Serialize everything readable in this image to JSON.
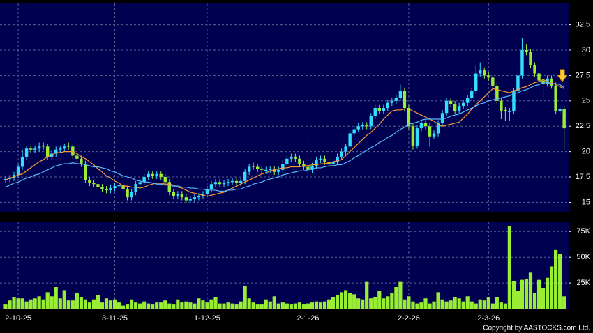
{
  "chart_data": [
    {
      "type": "candlestick",
      "categories": [
        null,
        null,
        null,
        "2-10-25",
        null,
        null,
        null,
        null,
        null,
        null,
        null,
        null,
        null,
        null,
        null,
        null,
        null,
        null,
        null,
        null,
        null,
        null,
        null,
        null,
        null,
        null,
        "3-11-25",
        null,
        null,
        null,
        null,
        null,
        null,
        null,
        null,
        null,
        null,
        null,
        null,
        null,
        null,
        null,
        null,
        null,
        null,
        null,
        null,
        null,
        "1-12-25",
        null,
        null,
        null,
        null,
        null,
        null,
        null,
        null,
        null,
        null,
        null,
        null,
        null,
        null,
        null,
        null,
        null,
        null,
        null,
        null,
        null,
        null,
        null,
        "2-1-26",
        null,
        null,
        null,
        null,
        null,
        null,
        null,
        null,
        null,
        null,
        null,
        null,
        null,
        null,
        null,
        null,
        null,
        null,
        null,
        null,
        null,
        null,
        null,
        "2-2-26",
        null,
        null,
        null,
        null,
        null,
        null,
        null,
        null,
        null,
        null,
        null,
        null,
        null,
        null,
        null,
        null,
        null,
        null,
        "2-3-26",
        null,
        null,
        null,
        null,
        null,
        null,
        null,
        null,
        null,
        null,
        null,
        null,
        null,
        null,
        null,
        null,
        null,
        null
      ],
      "open": [
        17.2,
        17.3,
        17.4,
        17.7,
        18.5,
        19.5,
        20.3,
        20.2,
        20.3,
        20.6,
        20.5,
        19.5,
        19.8,
        20.2,
        20.3,
        20.6,
        20.5,
        19.6,
        19.3,
        18.8,
        17.2,
        16.9,
        16.8,
        16.5,
        16.3,
        16.2,
        16.4,
        16.6,
        16.7,
        16.3,
        15.5,
        16.0,
        16.8,
        17.0,
        17.5,
        17.8,
        17.6,
        17.8,
        17.5,
        17.0,
        16.0,
        15.6,
        15.8,
        15.5,
        15.2,
        15.3,
        15.5,
        15.6,
        15.8,
        16.3,
        16.8,
        17.0,
        16.8,
        16.9,
        17.0,
        17.1,
        16.9,
        17.1,
        18.0,
        18.6,
        18.5,
        18.3,
        18.1,
        18.2,
        18.3,
        18.0,
        18.2,
        18.8,
        19.3,
        19.5,
        19.3,
        18.8,
        18.5,
        18.2,
        18.6,
        19.2,
        19.3,
        19.0,
        18.8,
        19.0,
        19.5,
        20.0,
        20.5,
        21.8,
        22.2,
        22.5,
        22.6,
        22.5,
        23.5,
        24.3,
        24.0,
        24.3,
        24.8,
        25.0,
        25.3,
        26.0,
        24.3,
        22.5,
        20.6,
        22.3,
        22.8,
        22.5,
        21.5,
        21.8,
        22.8,
        23.8,
        25.0,
        24.7,
        24.0,
        24.5,
        24.8,
        25.3,
        26.0,
        27.7,
        28.0,
        27.5,
        27.3,
        26.5,
        25.0,
        24.1,
        23.9,
        24.0,
        26.0,
        27.5,
        30.0,
        29.8,
        28.5,
        27.7,
        27.0,
        26.7,
        27.2,
        26.5,
        24.0,
        24.2
      ],
      "high": [
        17.6,
        17.7,
        18.0,
        18.8,
        20.2,
        20.6,
        20.6,
        20.6,
        20.9,
        20.9,
        20.8,
        20.1,
        20.5,
        20.6,
        20.8,
        20.9,
        20.8,
        19.9,
        19.6,
        19.1,
        17.5,
        17.2,
        17.1,
        16.8,
        16.6,
        16.7,
        16.9,
        17.0,
        17.0,
        16.6,
        16.3,
        17.1,
        17.3,
        17.8,
        18.1,
        18.1,
        18.1,
        18.1,
        17.8,
        17.3,
        16.3,
        16.1,
        16.1,
        15.8,
        15.6,
        15.8,
        15.9,
        16.1,
        16.6,
        17.1,
        17.3,
        17.3,
        17.2,
        17.3,
        17.4,
        17.4,
        17.4,
        18.3,
        18.8,
        18.9,
        18.8,
        18.6,
        18.5,
        18.6,
        18.6,
        18.5,
        19.1,
        19.6,
        19.8,
        19.8,
        19.6,
        19.1,
        18.8,
        18.9,
        19.5,
        19.6,
        19.6,
        19.3,
        19.3,
        19.8,
        20.3,
        20.8,
        22.1,
        22.5,
        22.8,
        22.9,
        22.9,
        23.8,
        24.6,
        24.6,
        24.6,
        25.1,
        25.3,
        25.6,
        26.6,
        26.3,
        24.6,
        22.8,
        22.6,
        23.1,
        23.1,
        22.8,
        22.1,
        23.1,
        24.1,
        25.3,
        25.3,
        25.0,
        24.8,
        25.1,
        25.6,
        26.3,
        28.5,
        28.8,
        28.3,
        27.8,
        27.6,
        26.8,
        25.3,
        24.4,
        24.3,
        26.3,
        28.3,
        31.2,
        30.6,
        30.1,
        28.8,
        28.0,
        27.3,
        27.5,
        27.5,
        26.8,
        24.5,
        24.5
      ],
      "low": [
        16.9,
        17.0,
        17.1,
        17.4,
        18.2,
        19.2,
        19.9,
        19.9,
        20.0,
        20.2,
        19.2,
        19.2,
        19.5,
        19.9,
        20.0,
        20.2,
        19.3,
        19.0,
        18.5,
        16.9,
        16.6,
        16.5,
        16.2,
        16.0,
        15.9,
        15.9,
        16.1,
        16.3,
        16.0,
        15.2,
        15.2,
        15.7,
        16.5,
        16.7,
        17.2,
        17.3,
        17.3,
        17.2,
        16.7,
        15.7,
        15.3,
        15.3,
        15.2,
        14.9,
        14.9,
        15.0,
        15.2,
        15.3,
        15.5,
        16.0,
        16.5,
        16.5,
        16.5,
        16.6,
        16.7,
        16.6,
        16.6,
        16.8,
        17.7,
        18.2,
        18.0,
        17.9,
        17.8,
        17.9,
        17.7,
        17.7,
        17.9,
        18.5,
        19.0,
        19.0,
        18.5,
        18.2,
        17.9,
        17.9,
        18.3,
        18.9,
        18.7,
        18.5,
        18.5,
        18.7,
        19.2,
        19.7,
        20.2,
        21.5,
        21.9,
        22.2,
        22.2,
        22.2,
        23.2,
        23.7,
        23.7,
        24.0,
        24.5,
        24.7,
        25.0,
        24.0,
        22.2,
        20.2,
        20.3,
        22.0,
        22.2,
        20.5,
        21.2,
        21.5,
        22.5,
        23.5,
        24.4,
        23.7,
        23.7,
        24.2,
        24.5,
        25.0,
        25.7,
        27.4,
        27.2,
        27.0,
        26.2,
        24.7,
        23.2,
        23.0,
        23.0,
        23.7,
        25.7,
        27.2,
        29.5,
        28.2,
        27.4,
        26.7,
        25.0,
        26.4,
        26.2,
        23.7,
        23.7,
        20.2
      ],
      "close": [
        17.3,
        17.4,
        17.7,
        18.5,
        19.5,
        20.3,
        20.2,
        20.3,
        20.5,
        20.5,
        19.5,
        19.8,
        20.2,
        20.3,
        20.5,
        20.5,
        19.6,
        19.3,
        18.8,
        17.2,
        16.9,
        16.8,
        16.5,
        16.3,
        16.2,
        16.4,
        16.6,
        16.7,
        16.3,
        15.5,
        16.0,
        16.8,
        17.0,
        17.5,
        17.8,
        17.6,
        17.8,
        17.5,
        17.0,
        16.0,
        15.6,
        15.8,
        15.5,
        15.2,
        15.3,
        15.5,
        15.6,
        15.8,
        16.3,
        16.8,
        17.0,
        16.8,
        16.9,
        17.0,
        17.1,
        16.9,
        17.1,
        18.0,
        18.5,
        18.5,
        18.3,
        18.2,
        18.2,
        18.3,
        18.0,
        18.2,
        18.8,
        19.3,
        19.5,
        19.3,
        18.8,
        18.5,
        18.2,
        18.6,
        19.2,
        19.3,
        19.0,
        18.8,
        19.0,
        19.5,
        20.0,
        20.5,
        21.8,
        22.2,
        22.5,
        22.6,
        22.5,
        23.5,
        24.3,
        24.0,
        24.3,
        24.8,
        25.0,
        25.3,
        26.0,
        24.3,
        22.5,
        20.6,
        22.3,
        22.8,
        22.5,
        21.5,
        21.8,
        22.8,
        23.8,
        25.0,
        24.7,
        24.0,
        24.5,
        24.8,
        25.3,
        26.0,
        27.7,
        28.0,
        27.5,
        27.3,
        26.5,
        25.0,
        24.0,
        24.0,
        24.0,
        26.0,
        27.5,
        30.0,
        29.8,
        28.5,
        27.7,
        27.0,
        26.7,
        27.2,
        26.5,
        24.0,
        24.2,
        22.3
      ],
      "up_color": "#33ddff",
      "down_color": "#99ee33",
      "series": [
        {
          "color": "#ff9933",
          "values": [
            17.2,
            17.4,
            17.5,
            17.7,
            17.8,
            18.1,
            18.4,
            18.7,
            19.0,
            19.2,
            19.5,
            19.7,
            19.9,
            19.9,
            20.0,
            20.0,
            20.0,
            19.8,
            19.5,
            19.3,
            19.0,
            18.7,
            18.3,
            18.0,
            17.6,
            17.4,
            17.1,
            16.9,
            16.6,
            16.6,
            16.5,
            16.5,
            16.4,
            16.5,
            16.7,
            16.8,
            16.9,
            16.9,
            16.8,
            16.8,
            16.7,
            16.5,
            16.4,
            16.2,
            16.0,
            15.9,
            15.8,
            15.7,
            15.6,
            15.7,
            15.8,
            15.9,
            16.0,
            16.2,
            16.4,
            16.6,
            16.8,
            17.0,
            17.2,
            17.4,
            17.6,
            17.8,
            17.9,
            18.1,
            18.2,
            18.3,
            18.4,
            18.4,
            18.5,
            18.5,
            18.5,
            18.6,
            18.6,
            18.7,
            18.7,
            18.8,
            18.8,
            18.9,
            19.0,
            19.1,
            19.2,
            19.6,
            20.0,
            20.4,
            20.8,
            21.2,
            21.6,
            21.9,
            22.3,
            22.7,
            23.2,
            23.6,
            24.0,
            24.1,
            24.1,
            24.2,
            24.2,
            24.0,
            23.8,
            23.6,
            23.4,
            23.2,
            23.0,
            22.7,
            22.5,
            22.6,
            22.7,
            22.8,
            22.9,
            23.3,
            23.7,
            24.2,
            24.6,
            25.0,
            25.4,
            25.8,
            26.2,
            26.1,
            26.0,
            25.9,
            25.8,
            26.0,
            26.1,
            26.3,
            26.4,
            26.6,
            26.8,
            26.9,
            27.1,
            26.9,
            26.8,
            26.6,
            26.4,
            26.2
          ]
        },
        {
          "color": "#55bbff",
          "values": [
            16.5,
            16.7,
            16.9,
            17.0,
            17.2,
            17.4,
            17.5,
            17.7,
            17.8,
            18.0,
            18.2,
            18.4,
            18.6,
            18.7,
            18.8,
            18.8,
            18.9,
            18.8,
            18.8,
            18.7,
            18.6,
            18.5,
            18.5,
            18.4,
            18.3,
            18.1,
            18.0,
            17.8,
            17.6,
            17.5,
            17.4,
            17.2,
            17.1,
            17.0,
            17.0,
            16.9,
            16.8,
            16.8,
            16.7,
            16.7,
            16.6,
            16.6,
            16.5,
            16.5,
            16.4,
            16.4,
            16.3,
            16.3,
            16.2,
            16.2,
            16.2,
            16.1,
            16.1,
            16.2,
            16.2,
            16.3,
            16.3,
            16.5,
            16.6,
            16.8,
            16.9,
            17.0,
            17.2,
            17.3,
            17.4,
            17.5,
            17.7,
            17.8,
            17.9,
            18.0,
            18.1,
            18.1,
            18.2,
            18.3,
            18.4,
            18.4,
            18.5,
            18.6,
            18.6,
            18.7,
            18.7,
            18.9,
            19.1,
            19.4,
            19.6,
            19.9,
            20.1,
            20.4,
            20.6,
            20.9,
            21.1,
            21.4,
            21.6,
            21.9,
            22.2,
            22.4,
            22.7,
            22.8,
            22.9,
            23.1,
            23.2,
            23.2,
            23.2,
            23.2,
            23.2,
            23.3,
            23.5,
            23.6,
            23.7,
            23.9,
            24.1,
            24.3,
            24.5,
            24.7,
            24.8,
            25.0,
            25.1,
            25.2,
            25.3,
            25.4,
            25.5,
            25.7,
            25.8,
            26.0,
            26.1,
            26.3,
            26.5,
            26.6,
            26.8,
            26.8,
            26.7,
            26.7,
            26.6,
            26.3
          ]
        }
      ],
      "ylim": [
        14,
        34.6
      ],
      "yticks": [
        15,
        17.5,
        20,
        22.5,
        25,
        27.5,
        30,
        32.5
      ],
      "grid": true
    },
    {
      "type": "bar",
      "values": [
        4000,
        8000,
        11000,
        10000,
        10000,
        7000,
        9000,
        10000,
        12000,
        9000,
        16000,
        12000,
        21000,
        10000,
        18000,
        8000,
        8000,
        15000,
        11000,
        9000,
        6000,
        9000,
        13000,
        6000,
        10000,
        8000,
        9000,
        6000,
        3000,
        4000,
        9000,
        6000,
        5000,
        7000,
        5000,
        4000,
        6000,
        6000,
        8000,
        5000,
        4000,
        9000,
        6000,
        7000,
        6000,
        5000,
        10000,
        8000,
        6000,
        9000,
        11000,
        5000,
        5000,
        6000,
        5000,
        4000,
        7000,
        22000,
        10000,
        6000,
        4000,
        4000,
        9000,
        7000,
        12000,
        5000,
        6000,
        5000,
        4000,
        5000,
        6000,
        4000,
        5000,
        6000,
        7000,
        6000,
        7000,
        9000,
        11000,
        13000,
        16000,
        18000,
        15000,
        14000,
        10000,
        9000,
        26000,
        10000,
        11000,
        17000,
        10000,
        12000,
        15000,
        21000,
        26000,
        9000,
        12000,
        7000,
        5000,
        6000,
        10000,
        5000,
        7000,
        16000,
        9000,
        7000,
        8000,
        11000,
        10000,
        7000,
        12000,
        7000,
        5000,
        9000,
        8000,
        11000,
        5000,
        11000,
        6000,
        5000,
        80000,
        27000,
        17000,
        28000,
        29000,
        35000,
        15000,
        28000,
        20000,
        30000,
        41000,
        57000,
        53000,
        12000
      ],
      "color": "#99ee33",
      "ylim": [
        0,
        84000
      ],
      "yticks": [
        {
          "value": 25000,
          "label": "25K"
        },
        {
          "value": 50000,
          "label": "50K"
        },
        {
          "value": 75000,
          "label": "75K"
        }
      ],
      "grid": true
    }
  ],
  "copyright": "Copyright by AASTOCKS.com Ltd."
}
